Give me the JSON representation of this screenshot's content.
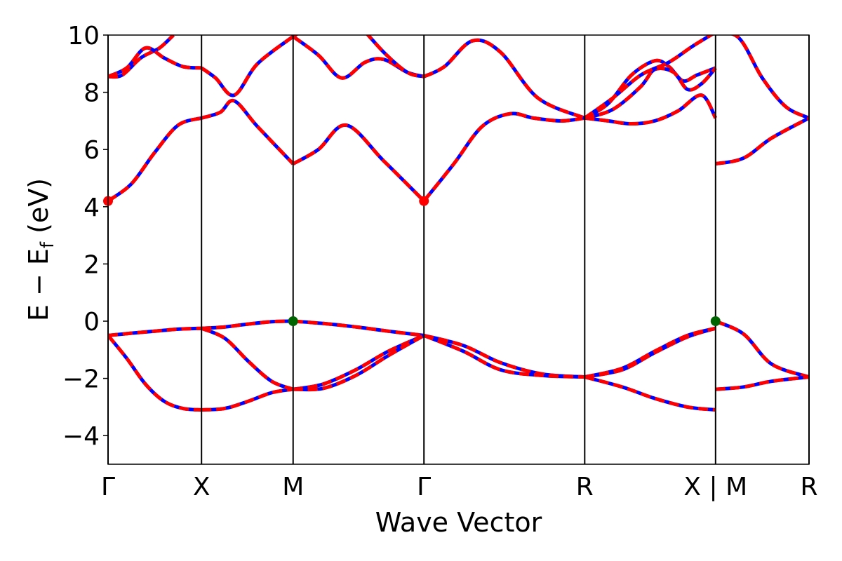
{
  "chart_data": {
    "type": "line",
    "title": "",
    "xlabel": "Wave Vector",
    "ylabel_main": "E − E",
    "ylabel_sub": "f",
    "ylabel_tail": " (eV)",
    "ylim": [
      -5,
      10
    ],
    "xlim": [
      0,
      7.5
    ],
    "grid": false,
    "yticks": [
      -4,
      -2,
      0,
      2,
      4,
      6,
      8,
      10
    ],
    "ytick_labels": [
      "−4",
      "−2",
      "0",
      "2",
      "4",
      "6",
      "8",
      "10"
    ],
    "kpoints": [
      {
        "x": 0.0,
        "label": "Γ"
      },
      {
        "x": 1.0,
        "label": "X"
      },
      {
        "x": 1.98,
        "label": "M"
      },
      {
        "x": 3.38,
        "label": "Γ"
      },
      {
        "x": 5.1,
        "label": "R"
      },
      {
        "x": 6.5,
        "label": "X | M"
      },
      {
        "x": 7.5,
        "label": "R"
      }
    ],
    "colors": {
      "spin_up": "#0000ff",
      "spin_down": "#ff0000",
      "vbm": "#006400",
      "cbm": "#ff0000"
    },
    "markers": [
      {
        "kind": "cbm",
        "x": 0.0,
        "y": 4.2
      },
      {
        "kind": "cbm",
        "x": 3.38,
        "y": 4.2
      },
      {
        "kind": "vbm",
        "x": 1.98,
        "y": 0.0
      },
      {
        "kind": "vbm",
        "x": 6.5,
        "y": 0.0
      }
    ],
    "bands": [
      {
        "x": [
          0,
          0.25,
          0.5,
          0.75,
          1.0
        ],
        "y": [
          -0.5,
          -0.42,
          -0.35,
          -0.28,
          -0.25
        ]
      },
      {
        "x": [
          0,
          0.2,
          0.4,
          0.6,
          0.8,
          1.0
        ],
        "y": [
          -0.5,
          -1.3,
          -2.2,
          -2.8,
          -3.05,
          -3.1
        ]
      },
      {
        "x": [
          1.0,
          1.25,
          1.5,
          1.75,
          1.98
        ],
        "y": [
          -0.25,
          -0.2,
          -0.1,
          -0.02,
          0.0
        ]
      },
      {
        "x": [
          1.0,
          1.25,
          1.5,
          1.75,
          1.98
        ],
        "y": [
          -3.1,
          -3.05,
          -2.8,
          -2.5,
          -2.38
        ]
      },
      {
        "x": [
          1.0,
          1.25,
          1.5,
          1.75,
          1.98
        ],
        "y": [
          -0.25,
          -0.6,
          -1.4,
          -2.1,
          -2.38
        ]
      },
      {
        "x": [
          1.98,
          2.3,
          2.65,
          3.0,
          3.38
        ],
        "y": [
          0.0,
          -0.08,
          -0.2,
          -0.35,
          -0.5
        ]
      },
      {
        "x": [
          1.98,
          2.3,
          2.65,
          3.0,
          3.38
        ],
        "y": [
          -2.38,
          -2.2,
          -1.7,
          -1.05,
          -0.5
        ]
      },
      {
        "x": [
          1.98,
          2.3,
          2.65,
          3.0,
          3.38
        ],
        "y": [
          -2.38,
          -2.35,
          -1.9,
          -1.2,
          -0.5
        ]
      },
      {
        "x": [
          3.38,
          3.8,
          4.2,
          4.65,
          5.1
        ],
        "y": [
          -0.5,
          -0.85,
          -1.45,
          -1.85,
          -1.95
        ]
      },
      {
        "x": [
          3.38,
          3.8,
          4.2,
          4.65,
          5.1
        ],
        "y": [
          -0.5,
          -1.05,
          -1.7,
          -1.9,
          -1.95
        ]
      },
      {
        "x": [
          5.1,
          5.5,
          5.85,
          6.2,
          6.5
        ],
        "y": [
          -1.95,
          -1.7,
          -1.1,
          -0.55,
          -0.25
        ]
      },
      {
        "x": [
          5.1,
          5.5,
          5.85,
          6.2,
          6.5
        ],
        "y": [
          -1.95,
          -1.65,
          -1.05,
          -0.5,
          -0.25
        ]
      },
      {
        "x": [
          5.1,
          5.5,
          5.85,
          6.2,
          6.5
        ],
        "y": [
          -1.95,
          -2.3,
          -2.7,
          -3.0,
          -3.1
        ]
      },
      {
        "x": [
          6.5,
          6.8,
          7.1,
          7.5
        ],
        "y": [
          0.0,
          -0.45,
          -1.5,
          -1.95
        ]
      },
      {
        "x": [
          6.5,
          6.8,
          7.1,
          7.5
        ],
        "y": [
          -2.38,
          -2.3,
          -2.1,
          -1.95
        ]
      },
      {
        "x": [
          0,
          0.25,
          0.5,
          0.75,
          1.0
        ],
        "y": [
          4.2,
          4.8,
          5.9,
          6.85,
          7.1
        ]
      },
      {
        "x": [
          1.0,
          1.2,
          1.35,
          1.6,
          1.98
        ],
        "y": [
          7.1,
          7.3,
          7.7,
          6.8,
          5.5
        ]
      },
      {
        "x": [
          1.98,
          2.25,
          2.55,
          2.95,
          3.38
        ],
        "y": [
          5.5,
          6.0,
          6.85,
          5.6,
          4.2
        ]
      },
      {
        "x": [
          3.38,
          3.7,
          4.0,
          4.3,
          4.55,
          4.85,
          5.1
        ],
        "y": [
          4.2,
          5.5,
          6.8,
          7.25,
          7.1,
          7.0,
          7.1
        ]
      },
      {
        "x": [
          5.1,
          5.35,
          5.6,
          5.85,
          6.1,
          6.35,
          6.5
        ],
        "y": [
          7.1,
          7.0,
          6.9,
          7.0,
          7.35,
          7.9,
          7.1
        ]
      },
      {
        "x": [
          6.5,
          6.8,
          7.1,
          7.5
        ],
        "y": [
          5.5,
          5.7,
          6.4,
          7.1
        ]
      },
      {
        "x": [
          0,
          0.15,
          0.35,
          0.55,
          0.7
        ],
        "y": [
          8.55,
          8.6,
          9.2,
          9.55,
          10.0
        ]
      },
      {
        "x": [
          0,
          0.2,
          0.4,
          0.6,
          0.8,
          1.0
        ],
        "y": [
          8.55,
          8.85,
          9.55,
          9.2,
          8.9,
          8.85
        ]
      },
      {
        "x": [
          1.0,
          1.15,
          1.35,
          1.6,
          1.98
        ],
        "y": [
          8.85,
          8.5,
          7.9,
          9.0,
          9.95
        ]
      },
      {
        "x": [
          1.98,
          2.25,
          2.5,
          2.75,
          2.95,
          3.2,
          3.38
        ],
        "y": [
          9.95,
          9.3,
          8.5,
          9.05,
          9.15,
          8.7,
          8.55
        ]
      },
      {
        "x": [
          1.98,
          2.25,
          2.5,
          2.75
        ],
        "y": [
          9.95,
          10.5,
          10.8,
          10.5
        ]
      },
      {
        "x": [
          2.65,
          2.95,
          3.2,
          3.38
        ],
        "y": [
          10.5,
          9.4,
          8.7,
          8.55
        ]
      },
      {
        "x": [
          3.38,
          3.6,
          3.9,
          4.2,
          4.6,
          5.1
        ],
        "y": [
          8.55,
          8.9,
          9.8,
          9.4,
          7.8,
          7.1
        ]
      },
      {
        "x": [
          5.1,
          5.35,
          5.6,
          5.85,
          6.0,
          6.15,
          6.3,
          6.5
        ],
        "y": [
          7.1,
          7.6,
          8.6,
          9.1,
          8.9,
          8.4,
          8.6,
          8.85
        ]
      },
      {
        "x": [
          5.1,
          5.4,
          5.7,
          5.85,
          6.05,
          6.2,
          6.35,
          6.5
        ],
        "y": [
          7.1,
          7.4,
          8.2,
          8.8,
          8.7,
          8.1,
          8.3,
          8.85
        ]
      },
      {
        "x": [
          5.1,
          5.4,
          5.7,
          6.0,
          6.25,
          6.5
        ],
        "y": [
          7.1,
          7.8,
          8.6,
          9.05,
          9.6,
          10.1
        ]
      },
      {
        "x": [
          6.5,
          6.75,
          7.0,
          7.25,
          7.5
        ],
        "y": [
          10.1,
          9.9,
          8.5,
          7.5,
          7.1
        ]
      }
    ]
  }
}
